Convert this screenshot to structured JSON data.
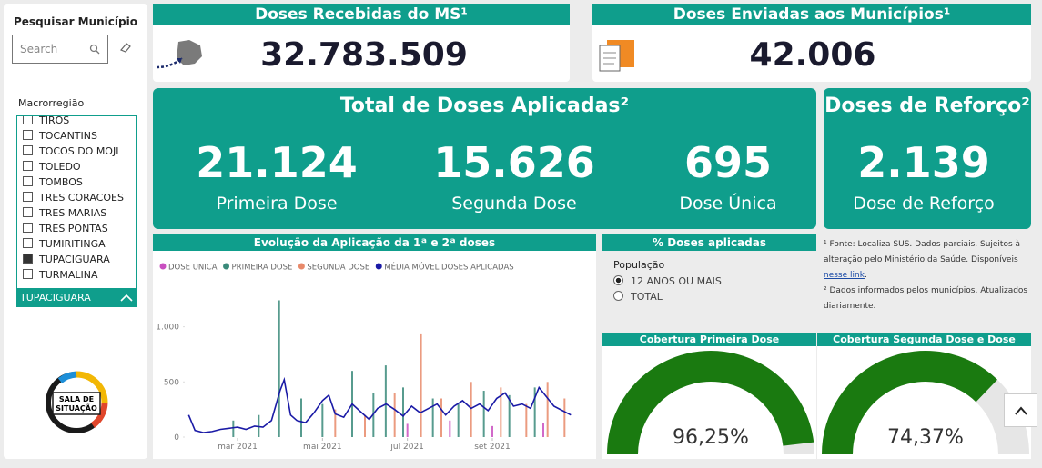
{
  "sidebar": {
    "title": "Pesquisar Município",
    "search_placeholder": "Search",
    "filter_label": "Macrorregião",
    "municipios": [
      "TIROS",
      "TOCANTINS",
      "TOCOS DO MOJI",
      "TOLEDO",
      "TOMBOS",
      "TRES CORACOES",
      "TRES MARIAS",
      "TRES PONTAS",
      "TUMIRITINGA",
      "TUPACIGUARA",
      "TURMALINA"
    ],
    "selected": "TUPACIGUARA",
    "logo_text": [
      "SALA DE",
      "SITUAÇÃO"
    ]
  },
  "kpis": {
    "recebidas": {
      "title": "Doses Recebidas do MS¹",
      "value": "32.783.509"
    },
    "enviadas": {
      "title": "Doses Enviadas aos Municípios¹",
      "value": "42.006"
    },
    "aplicadas": {
      "title": "Total de Doses Aplicadas²",
      "items": [
        {
          "value": "21.124",
          "label": "Primeira Dose"
        },
        {
          "value": "15.626",
          "label": "Segunda Dose"
        },
        {
          "value": "695",
          "label": "Dose Única"
        }
      ]
    },
    "reforco": {
      "title": "Doses de Reforço²",
      "value": "2.139",
      "label": "Dose de Reforço"
    }
  },
  "filter_panel": {
    "title": "% Doses aplicadas",
    "label": "População",
    "options": [
      "12 ANOS OU MAIS",
      "TOTAL"
    ],
    "selected": "12 ANOS OU MAIS"
  },
  "footnotes": {
    "note1": "¹ Fonte: Localiza SUS. Dados parciais. Sujeitos à alteração pelo Ministério da Saúde. Disponíveis",
    "note1_link": "nesse link",
    "note2": "² Dados informados pelos municípios. Atualizados diariamente."
  },
  "chart_data": [
    {
      "type": "combo",
      "title": "Evolução da Aplicação da 1ª e 2ª doses",
      "xlim": [
        1.8,
        10.95
      ],
      "xticks": [
        {
          "value": 3,
          "label": "mar 2021"
        },
        {
          "value": 5,
          "label": "mai 2021"
        },
        {
          "value": 7,
          "label": "jul 2021"
        },
        {
          "value": 9,
          "label": "set 2021"
        }
      ],
      "ylim": [
        0,
        1450
      ],
      "yticks": [
        0,
        500,
        {
          "value": 1000,
          "label": "1.000"
        }
      ],
      "grid": false,
      "series": [
        {
          "name": "DOSE UNICA",
          "color": "#c94fc0",
          "kind": "bar",
          "x": [
            7.0,
            8.0,
            9.0,
            10.2
          ],
          "values": [
            120,
            150,
            100,
            130
          ]
        },
        {
          "name": "PRIMEIRA DOSE",
          "color": "#3a8a7a",
          "kind": "bar",
          "x": [
            2.9,
            3.5,
            3.98,
            4.5,
            5.0,
            5.7,
            6.2,
            6.49,
            6.9,
            7.6,
            8.2,
            8.8,
            9.4,
            10.0
          ],
          "values": [
            150,
            200,
            1240,
            350,
            300,
            600,
            400,
            650,
            450,
            350,
            300,
            420,
            380,
            450
          ]
        },
        {
          "name": "SEGUNDA DOSE",
          "color": "#e8896a",
          "kind": "bar",
          "x": [
            5.3,
            6.0,
            6.7,
            7.32,
            7.8,
            8.5,
            9.2,
            9.8,
            10.3,
            10.7
          ],
          "values": [
            250,
            200,
            400,
            940,
            350,
            500,
            450,
            300,
            500,
            350
          ]
        },
        {
          "name": "MÉDIA MÓVEL DOSES APLICADAS",
          "color": "#1a1aa6",
          "kind": "line",
          "x": [
            1.85,
            2.0,
            2.2,
            2.4,
            2.6,
            2.8,
            3.0,
            3.2,
            3.4,
            3.6,
            3.8,
            4.0,
            4.1,
            4.25,
            4.4,
            4.6,
            4.8,
            5.0,
            5.15,
            5.3,
            5.5,
            5.7,
            5.9,
            6.1,
            6.3,
            6.5,
            6.7,
            6.9,
            7.1,
            7.3,
            7.5,
            7.7,
            7.9,
            8.1,
            8.3,
            8.5,
            8.7,
            8.9,
            9.1,
            9.3,
            9.5,
            9.7,
            9.9,
            10.1,
            10.45,
            10.85
          ],
          "values": [
            200,
            60,
            40,
            50,
            70,
            80,
            90,
            70,
            100,
            90,
            150,
            420,
            520,
            200,
            150,
            130,
            220,
            330,
            380,
            210,
            180,
            300,
            230,
            160,
            260,
            300,
            250,
            190,
            280,
            220,
            260,
            300,
            200,
            280,
            330,
            260,
            300,
            240,
            350,
            400,
            280,
            300,
            260,
            450,
            280,
            200
          ]
        }
      ]
    },
    {
      "type": "gauge",
      "title": "Cobertura Primeira Dose",
      "value": 96.25,
      "value_label": "96,25%",
      "range": [
        0,
        100
      ],
      "color": "#1a7a10",
      "track_color": "#e6e6e6"
    },
    {
      "type": "gauge",
      "title": "Cobertura Segunda Dose e Dose Única",
      "value": 74.37,
      "value_label": "74,37%",
      "range": [
        0,
        100
      ],
      "color": "#1a7a10",
      "track_color": "#e6e6e6"
    }
  ]
}
